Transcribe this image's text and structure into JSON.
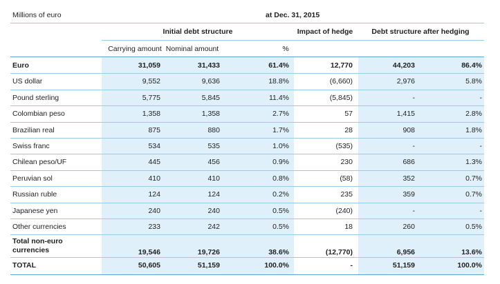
{
  "header": {
    "unit": "Millions of euro",
    "date": "at Dec. 31, 2015"
  },
  "table": {
    "groups": [
      "Initial debt structure",
      "Impact of hedge",
      "Debt structure after hedging"
    ],
    "subheaders": [
      "Carrying amount",
      "Nominal amount",
      "%"
    ],
    "rows": [
      [
        "Euro",
        "31,059",
        "31,433",
        "61.4%",
        "12,770",
        "44,203",
        "86.4%"
      ],
      [
        "US dollar",
        "9,552",
        "9,636",
        "18.8%",
        "(6,660)",
        "2,976",
        "5.8%"
      ],
      [
        "Pound sterling",
        "5,775",
        "5,845",
        "11.4%",
        "(5,845)",
        "-",
        "-"
      ],
      [
        "Colombian peso",
        "1,358",
        "1,358",
        "2.7%",
        "57",
        "1,415",
        "2.8%"
      ],
      [
        "Brazilian real",
        "875",
        "880",
        "1.7%",
        "28",
        "908",
        "1.8%"
      ],
      [
        "Swiss franc",
        "534",
        "535",
        "1.0%",
        "(535)",
        "-",
        "-"
      ],
      [
        "Chilean peso/UF",
        "445",
        "456",
        "0.9%",
        "230",
        "686",
        "1.3%"
      ],
      [
        "Peruvian sol",
        "410",
        "410",
        "0.8%",
        "(58)",
        "352",
        "0.7%"
      ],
      [
        "Russian ruble",
        "124",
        "124",
        "0.2%",
        "235",
        "359",
        "0.7%"
      ],
      [
        "Japanese yen",
        "240",
        "240",
        "0.5%",
        "(240)",
        "-",
        "-"
      ],
      [
        "Other currencies",
        "233",
        "242",
        "0.5%",
        "18",
        "260",
        "0.5%"
      ],
      [
        "Total non-euro currencies",
        "19,546",
        "19,726",
        "38.6%",
        "(12,770)",
        "6,956",
        "13.6%"
      ],
      [
        "TOTAL",
        "50,605",
        "51,159",
        "100.0%",
        "-",
        "51,159",
        "100.0%"
      ]
    ]
  }
}
